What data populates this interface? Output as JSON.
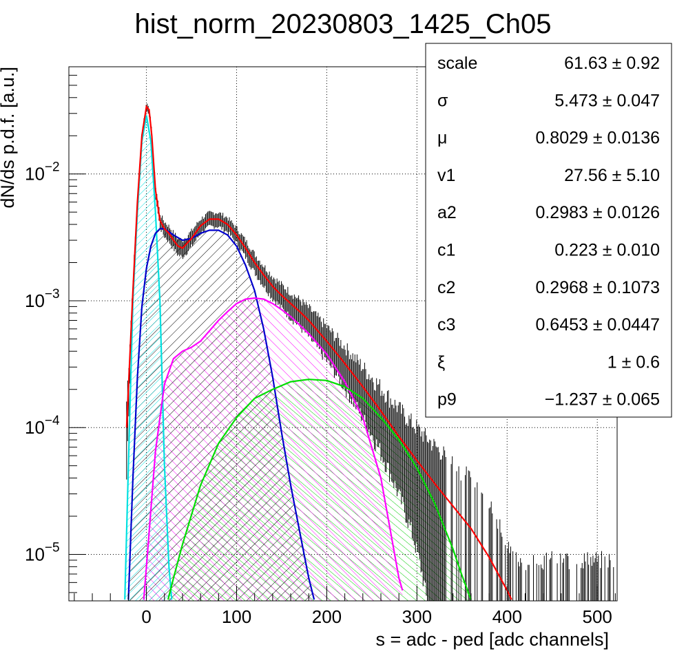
{
  "chart_data": {
    "type": "line",
    "title": "hist_norm_20230803_1425_Ch05",
    "xlabel": "s = adc - ped [adc channels]",
    "ylabel": "dN/ds p.d.f. [a.u.]",
    "xlim": [
      -86,
      522
    ],
    "ylim": [
      4.3e-06,
      0.07
    ],
    "yscale": "log",
    "grid": true,
    "x_ticks": [
      0,
      100,
      200,
      300,
      400,
      500
    ],
    "x_tick_labels": [
      "0",
      "100",
      "200",
      "300",
      "400",
      "500"
    ],
    "y_ticks": [
      1e-05,
      0.0001,
      0.001,
      0.01
    ],
    "y_tick_labels": [
      {
        "base": "10",
        "exp": "−5"
      },
      {
        "base": "10",
        "exp": "−4"
      },
      {
        "base": "10",
        "exp": "−3"
      },
      {
        "base": "10",
        "exp": "−2"
      }
    ],
    "series": [
      {
        "color": "#ff0000",
        "hatch": false,
        "x": [
          -22,
          -15,
          -10,
          -5,
          0,
          3,
          6,
          10,
          15,
          20,
          25,
          30,
          35,
          40,
          50,
          60,
          70,
          80,
          90,
          100,
          110,
          120,
          130,
          140,
          150,
          160,
          170,
          180,
          190,
          200,
          220,
          240,
          260,
          280,
          300,
          320,
          340,
          360,
          380,
          400,
          405
        ],
        "y": [
          0.0001,
          0.0012,
          0.006,
          0.02,
          0.034,
          0.032,
          0.02,
          0.0075,
          0.0043,
          0.0037,
          0.0034,
          0.003,
          0.0027,
          0.0026,
          0.0031,
          0.0039,
          0.0044,
          0.0044,
          0.004,
          0.0033,
          0.0026,
          0.002,
          0.0016,
          0.0013,
          0.0011,
          0.00095,
          0.00082,
          0.0007,
          0.00058,
          0.00048,
          0.00032,
          0.00021,
          0.000135,
          8.5e-05,
          5.5e-05,
          3.6e-05,
          2.4e-05,
          1.6e-05,
          9.5e-06,
          5.2e-06,
          4.4e-06
        ]
      },
      {
        "color": "#00e0e0",
        "hatch": true,
        "x": [
          -24,
          -20,
          -15,
          -10,
          -5,
          0,
          5,
          10,
          15,
          20,
          25,
          28
        ],
        "y": [
          4.4e-06,
          5e-05,
          0.001,
          0.005,
          0.018,
          0.029,
          0.018,
          0.005,
          0.001,
          5e-05,
          8e-06,
          4.4e-06
        ]
      },
      {
        "color": "#0000cc",
        "hatch": true,
        "x": [
          -20,
          -15,
          -10,
          -5,
          0,
          5,
          10,
          15,
          20,
          30,
          40,
          50,
          60,
          70,
          80,
          90,
          100,
          110,
          120,
          130,
          140,
          150,
          160,
          170,
          180,
          186
        ],
        "y": [
          4.4e-06,
          4e-05,
          0.00025,
          0.0009,
          0.0018,
          0.0027,
          0.0034,
          0.0037,
          0.0037,
          0.0033,
          0.003,
          0.0031,
          0.0034,
          0.0036,
          0.0036,
          0.0033,
          0.0027,
          0.0019,
          0.0012,
          0.0006,
          0.00025,
          9e-05,
          3.5e-05,
          1.5e-05,
          6.5e-06,
          4.4e-06
        ]
      },
      {
        "color": "#ff00ff",
        "hatch": true,
        "x": [
          -3,
          0,
          10,
          20,
          30,
          40,
          50,
          60,
          70,
          80,
          90,
          100,
          110,
          120,
          130,
          140,
          150,
          160,
          180,
          200,
          220,
          240,
          260,
          280,
          284
        ],
        "y": [
          4.4e-06,
          8e-06,
          6.5e-05,
          0.00022,
          0.00035,
          0.0004,
          0.00043,
          0.00048,
          0.00058,
          0.0007,
          0.00082,
          0.00095,
          0.00103,
          0.00105,
          0.00103,
          0.00095,
          0.00085,
          0.00075,
          0.00055,
          0.00038,
          0.00023,
          0.00012,
          4e-05,
          6.5e-06,
          5.2e-06
        ]
      },
      {
        "color": "#00dd00",
        "hatch": true,
        "x": [
          24,
          30,
          40,
          60,
          80,
          100,
          120,
          140,
          160,
          180,
          200,
          220,
          240,
          260,
          280,
          300,
          320,
          340,
          350,
          360
        ],
        "y": [
          4.4e-06,
          6.5e-06,
          1.2e-05,
          3.5e-05,
          7.5e-05,
          0.00012,
          0.00017,
          0.0002,
          0.00023,
          0.00024,
          0.000235,
          0.00021,
          0.00017,
          0.00012,
          8e-05,
          4.8e-05,
          2.5e-05,
          1.1e-05,
          6.8e-06,
          4.4e-06
        ]
      }
    ]
  },
  "stats": {
    "rows": [
      {
        "label": "scale",
        "value": "61.63 ± 0.92"
      },
      {
        "label": "σ",
        "value": "5.473 ± 0.047"
      },
      {
        "label": "μ",
        "value": "0.8029 ± 0.0136"
      },
      {
        "label": "v1",
        "value": "27.56 ± 5.10"
      },
      {
        "label": "a2",
        "value": "0.2983 ± 0.0126"
      },
      {
        "label": "c1",
        "value": "0.223 ± 0.010"
      },
      {
        "label": "c2",
        "value": "0.2968 ± 0.1073"
      },
      {
        "label": "c3",
        "value": "0.6453 ± 0.0447"
      },
      {
        "label": "ξ",
        "value": "1 ± 0.6"
      },
      {
        "label": "p9",
        "value": "−1.237 ± 0.065"
      }
    ]
  }
}
